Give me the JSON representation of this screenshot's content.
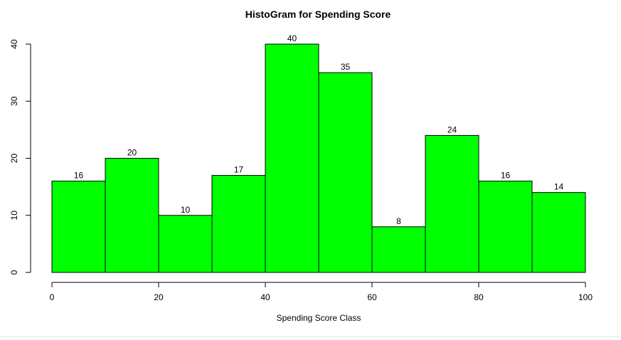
{
  "chart_data": {
    "type": "bar",
    "title": "HistoGram for Spending Score",
    "xlabel": "Spending Score Class",
    "ylabel": "",
    "bin_edges": [
      0,
      10,
      20,
      30,
      40,
      50,
      60,
      70,
      80,
      90,
      100
    ],
    "values": [
      16,
      20,
      10,
      17,
      40,
      35,
      8,
      24,
      16,
      14
    ],
    "x_ticks": [
      0,
      20,
      40,
      60,
      80,
      100
    ],
    "y_ticks": [
      0,
      10,
      20,
      30,
      40
    ],
    "xlim": [
      0,
      100
    ],
    "ylim": [
      0,
      40
    ],
    "grid": false,
    "bar_color": "#00ff00",
    "bar_border_color": "#000000"
  }
}
